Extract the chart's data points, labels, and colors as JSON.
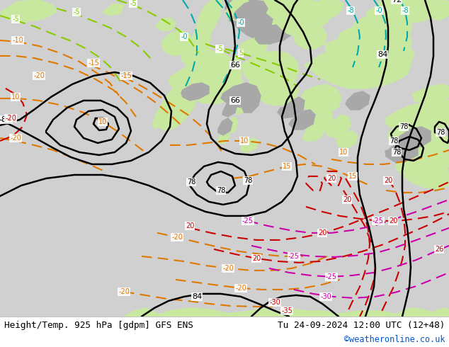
{
  "title_left": "Height/Temp. 925 hPa [gdpm] GFS ENS",
  "title_right": "Tu 24-09-2024 12:00 UTC (12+48)",
  "copyright": "©weatheronline.co.uk",
  "figsize": [
    6.34,
    4.9
  ],
  "dpi": 100,
  "map_bg": "#d0d0d0",
  "land_green": "#c8e8a0",
  "land_grey": "#a8a8a8",
  "bottom_bar_color": "#ffffff",
  "title_color": "#000000",
  "copyright_color": "#0055cc"
}
